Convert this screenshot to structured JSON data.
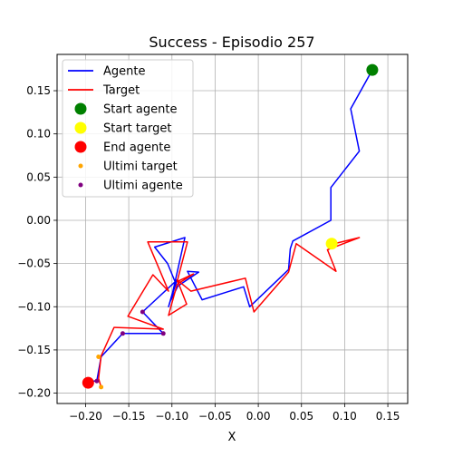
{
  "chart_data": {
    "type": "line",
    "title": "Success - Episodio 257",
    "xlabel": "X",
    "ylabel": "Y",
    "xlim": [
      -0.233,
      0.173
    ],
    "ylim": [
      -0.212,
      0.192
    ],
    "xticks": [
      -0.2,
      -0.15,
      -0.1,
      -0.05,
      0.0,
      0.05,
      0.1,
      0.15
    ],
    "xtick_labels": [
      "−0.20",
      "−0.15",
      "−0.10",
      "−0.05",
      "0.00",
      "0.05",
      "0.10",
      "0.15"
    ],
    "yticks": [
      -0.2,
      -0.15,
      -0.1,
      -0.05,
      0.0,
      0.05,
      0.1,
      0.15
    ],
    "ytick_labels": [
      "−0.20",
      "−0.15",
      "−0.10",
      "−0.05",
      "0.00",
      "0.05",
      "0.10",
      "0.15"
    ],
    "grid": true,
    "legend_position": "top-left",
    "series": [
      {
        "name": "Agente",
        "kind": "line",
        "color": "#0000ff",
        "points": [
          [
            0.132,
            0.174
          ],
          [
            0.107,
            0.129
          ],
          [
            0.117,
            0.08
          ],
          [
            0.084,
            0.038
          ],
          [
            0.084,
            0.0
          ],
          [
            0.04,
            -0.024
          ],
          [
            0.037,
            -0.033
          ],
          [
            0.035,
            -0.057
          ],
          [
            -0.01,
            -0.1
          ],
          [
            -0.017,
            -0.077
          ],
          [
            -0.065,
            -0.092
          ],
          [
            -0.082,
            -0.059
          ],
          [
            -0.069,
            -0.06
          ],
          [
            -0.093,
            -0.076
          ],
          [
            -0.101,
            -0.092
          ],
          [
            -0.085,
            -0.02
          ],
          [
            -0.12,
            -0.031
          ],
          [
            -0.105,
            -0.05
          ],
          [
            -0.096,
            -0.072
          ],
          [
            -0.104,
            -0.1
          ],
          [
            -0.094,
            -0.069
          ],
          [
            -0.134,
            -0.106
          ],
          [
            -0.11,
            -0.131
          ],
          [
            -0.157,
            -0.131
          ],
          [
            -0.182,
            -0.158
          ],
          [
            -0.187,
            -0.186
          ],
          [
            -0.197,
            -0.186
          ]
        ]
      },
      {
        "name": "Target",
        "kind": "line",
        "color": "#ff0000",
        "points": [
          [
            0.084,
            -0.028
          ],
          [
            0.117,
            -0.02
          ],
          [
            0.08,
            -0.034
          ],
          [
            0.09,
            -0.059
          ],
          [
            0.044,
            -0.027
          ],
          [
            0.035,
            -0.06
          ],
          [
            -0.005,
            -0.106
          ],
          [
            -0.015,
            -0.067
          ],
          [
            -0.078,
            -0.082
          ],
          [
            -0.094,
            -0.069
          ],
          [
            -0.083,
            -0.097
          ],
          [
            -0.104,
            -0.11
          ],
          [
            -0.094,
            -0.074
          ],
          [
            -0.075,
            -0.062
          ],
          [
            -0.094,
            -0.071
          ],
          [
            -0.082,
            -0.025
          ],
          [
            -0.128,
            -0.025
          ],
          [
            -0.104,
            -0.082
          ],
          [
            -0.122,
            -0.063
          ],
          [
            -0.151,
            -0.111
          ],
          [
            -0.11,
            -0.126
          ],
          [
            -0.167,
            -0.124
          ],
          [
            -0.182,
            -0.157
          ],
          [
            -0.185,
            -0.183
          ],
          [
            -0.182,
            -0.193
          ]
        ]
      }
    ],
    "markers": [
      {
        "name": "Start agente",
        "color": "#008000",
        "x": 0.132,
        "y": 0.174,
        "size": "large"
      },
      {
        "name": "Start target",
        "color": "#ffff00",
        "x": 0.085,
        "y": -0.027,
        "size": "large"
      },
      {
        "name": "End agente",
        "color": "#ff0000",
        "x": -0.197,
        "y": -0.188,
        "size": "large"
      },
      {
        "name": "Ultimi target",
        "color": "#ffa500",
        "size": "small",
        "points": [
          [
            -0.182,
            -0.193
          ],
          [
            -0.185,
            -0.158
          ]
        ]
      },
      {
        "name": "Ultimi agente",
        "color": "#800080",
        "size": "small",
        "points": [
          [
            -0.187,
            -0.186
          ],
          [
            -0.134,
            -0.106
          ],
          [
            -0.11,
            -0.131
          ],
          [
            -0.157,
            -0.131
          ]
        ]
      }
    ]
  }
}
